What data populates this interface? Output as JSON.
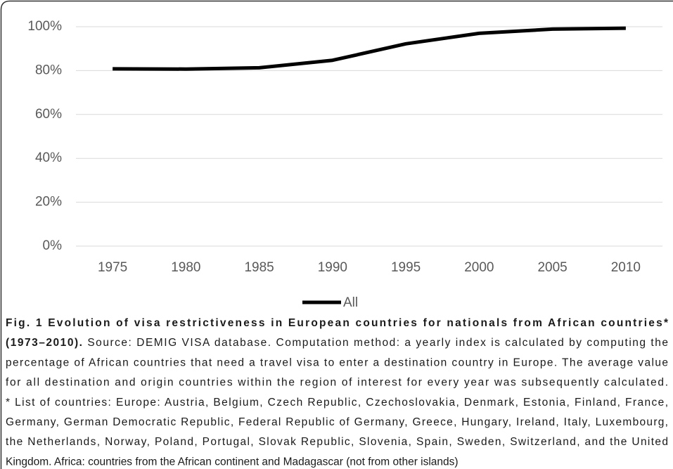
{
  "chart_data": {
    "type": "line",
    "categories": [
      "1975",
      "1980",
      "1985",
      "1990",
      "1995",
      "2000",
      "2005",
      "2010"
    ],
    "series": [
      {
        "name": "All",
        "color": "#000000",
        "values": [
          80.8,
          80.7,
          81.3,
          84.7,
          92.2,
          97.0,
          98.9,
          99.3
        ]
      }
    ],
    "ylim": [
      0,
      100
    ],
    "yticks": [
      {
        "value": 0,
        "label": "0%"
      },
      {
        "value": 20,
        "label": "20%"
      },
      {
        "value": 40,
        "label": "40%"
      },
      {
        "value": 60,
        "label": "60%"
      },
      {
        "value": 80,
        "label": "80%"
      },
      {
        "value": 100,
        "label": "100%"
      }
    ],
    "grid": true,
    "legend": "bottom",
    "caption_title": [
      "Fig. 1 Evolution of visa restrictiveness in European countries for nationals from African countries*",
      "(1973–2010)."
    ],
    "caption_body": [
      "Source: DEMIG VISA database. Computation method: a yearly index is calculated by computing the",
      "percentage of African countries that need a travel visa to enter a destination country in Europe. The average value",
      "for all destination and origin countries within the region of interest for every year was subsequently calculated.",
      "* List of countries: Europe: Austria, Belgium, Czech Republic, Czechoslovakia, Denmark, Estonia, Finland, France,",
      "Germany, German Democratic Republic, Federal Republic of Germany, Greece, Hungary, Ireland, Italy, Luxembourg,",
      "the Netherlands, Norway, Poland, Portugal, Slovak Republic, Slovenia, Spain, Sweden, Switzerland, and the United",
      "Kingdom. Africa: countries from the African continent and Madagascar (not from other islands)"
    ]
  }
}
